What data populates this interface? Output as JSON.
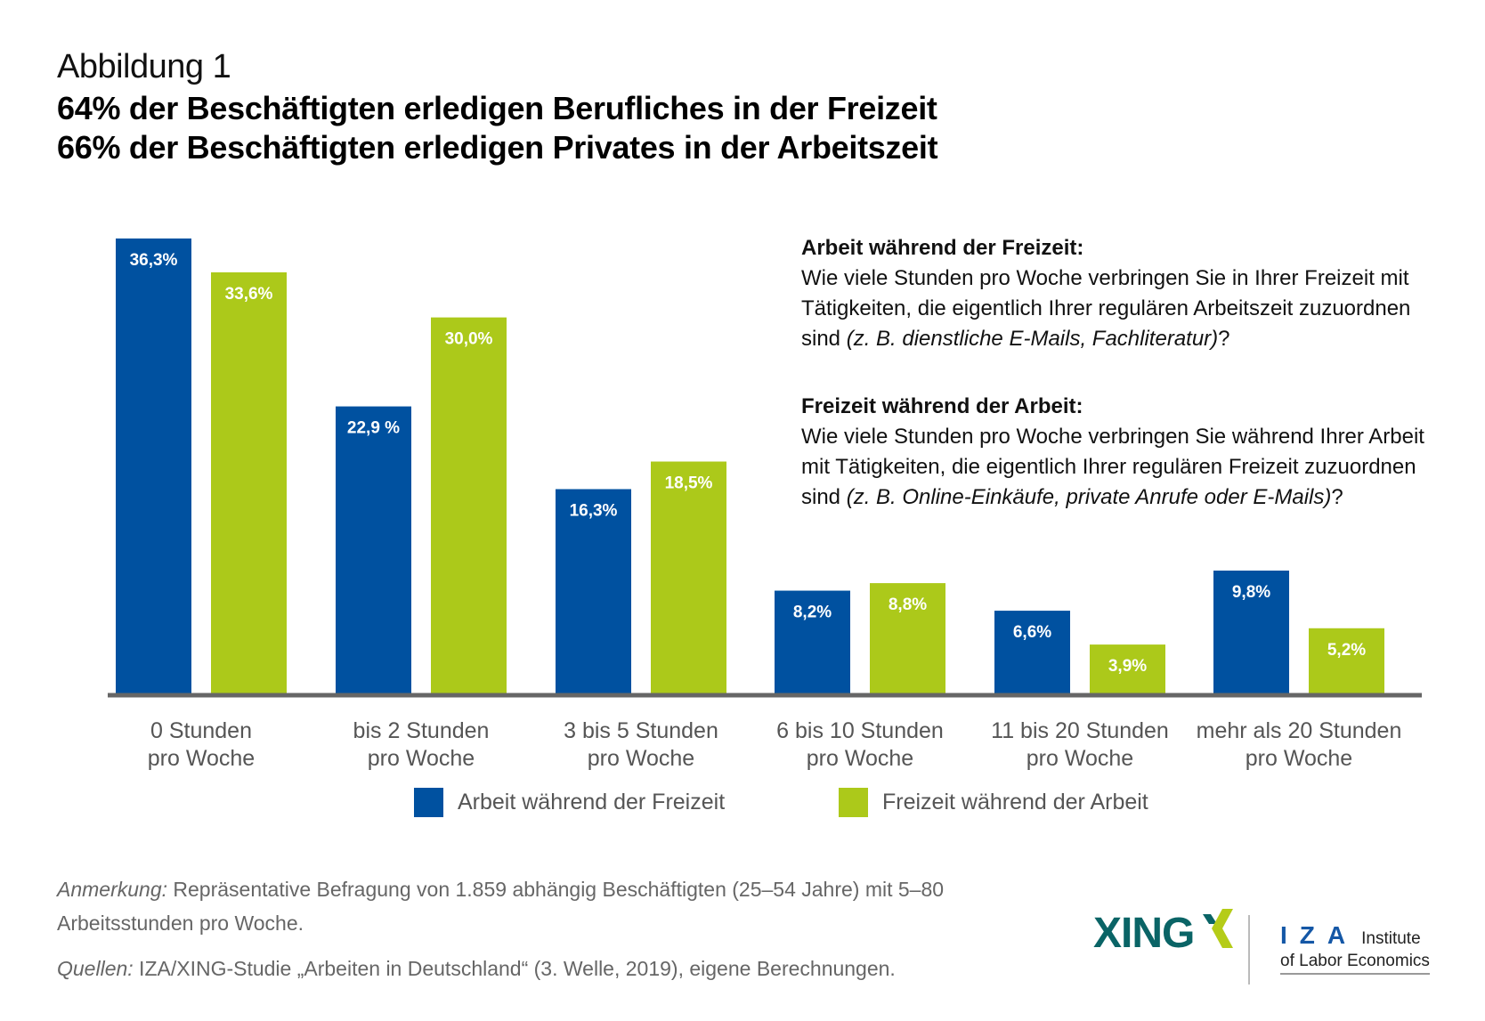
{
  "figure_label": "Abbildung 1",
  "title_lines": [
    "64% der Beschäftigten erledigen Berufliches in der Freizeit",
    "66% der Beschäftigten erledigen Privates in der Arbeitszeit"
  ],
  "questions": [
    {
      "heading": "Arbeit während der Freizeit:",
      "text": "Wie viele Stunden pro Woche verbringen Sie in Ihrer Freizeit mit Tätigkeiten, die eigentlich Ihrer regulären Arbeitszeit zuzuordnen sind ",
      "example": "(z. B. dienstliche E-Mails, Fachliteratur)",
      "end": "?"
    },
    {
      "heading": "Freizeit während der Arbeit:",
      "text": "Wie viele Stunden pro Woche verbringen Sie während Ihrer Arbeit mit Tätigkeiten, die eigentlich Ihrer regulären Freizeit zuzuordnen sind ",
      "example": "(z. B. Online-Einkäufe, private Anrufe oder E-Mails)",
      "end": "?"
    }
  ],
  "colors": {
    "series_blue": "#0051a0",
    "series_green": "#acc91a",
    "axis": "#666666",
    "xing_teal": "#0a6466",
    "xing_green": "#b5cc18",
    "iza_blue": "#1457a6"
  },
  "chart_data": {
    "type": "bar",
    "title": "64% der Beschäftigten erledigen Berufliches in der Freizeit / 66% der Beschäftigten erledigen Privates in der Arbeitszeit",
    "xlabel": "",
    "ylabel": "",
    "ylim": [
      0,
      36.3
    ],
    "grid": false,
    "legend_position": "bottom",
    "categories": [
      [
        "0 Stunden",
        "pro Woche"
      ],
      [
        "bis 2 Stunden",
        "pro Woche"
      ],
      [
        "3 bis 5 Stunden",
        "pro Woche"
      ],
      [
        "6 bis 10 Stunden",
        "pro Woche"
      ],
      [
        "11 bis 20 Stunden",
        "pro Woche"
      ],
      [
        "mehr als 20 Stunden",
        "pro Woche"
      ]
    ],
    "series": [
      {
        "name": "Arbeit während der Freizeit",
        "color": "#0051a0",
        "values": [
          36.3,
          22.9,
          16.3,
          8.2,
          6.6,
          9.8
        ],
        "labels": [
          "36,3%",
          "22,9 %",
          "16,3%",
          "8,2%",
          "6,6%",
          "9,8%"
        ]
      },
      {
        "name": "Freizeit während der Arbeit",
        "color": "#acc91a",
        "values": [
          33.6,
          30.0,
          18.5,
          8.8,
          3.9,
          5.2
        ],
        "labels": [
          "33,6%",
          "30,0%",
          "18,5%",
          "8,8%",
          "3,9%",
          "5,2%"
        ]
      }
    ]
  },
  "footer": {
    "note_label": "Anmerkung:",
    "note_text": " Repräsentative Befragung von 1.859 abhängig Beschäftigten (25–54 Jahre) mit 5–80 Arbeitsstunden pro Woche.",
    "sources_label": "Quellen:",
    "sources_text": " IZA/XING-Studie „Arbeiten in Deutschland“ (3. Welle, 2019), eigene Berechnungen."
  },
  "logos": {
    "xing": "XING",
    "iza_letters": "IZA",
    "iza_line1": "Institute",
    "iza_line2": "of Labor Economics"
  }
}
